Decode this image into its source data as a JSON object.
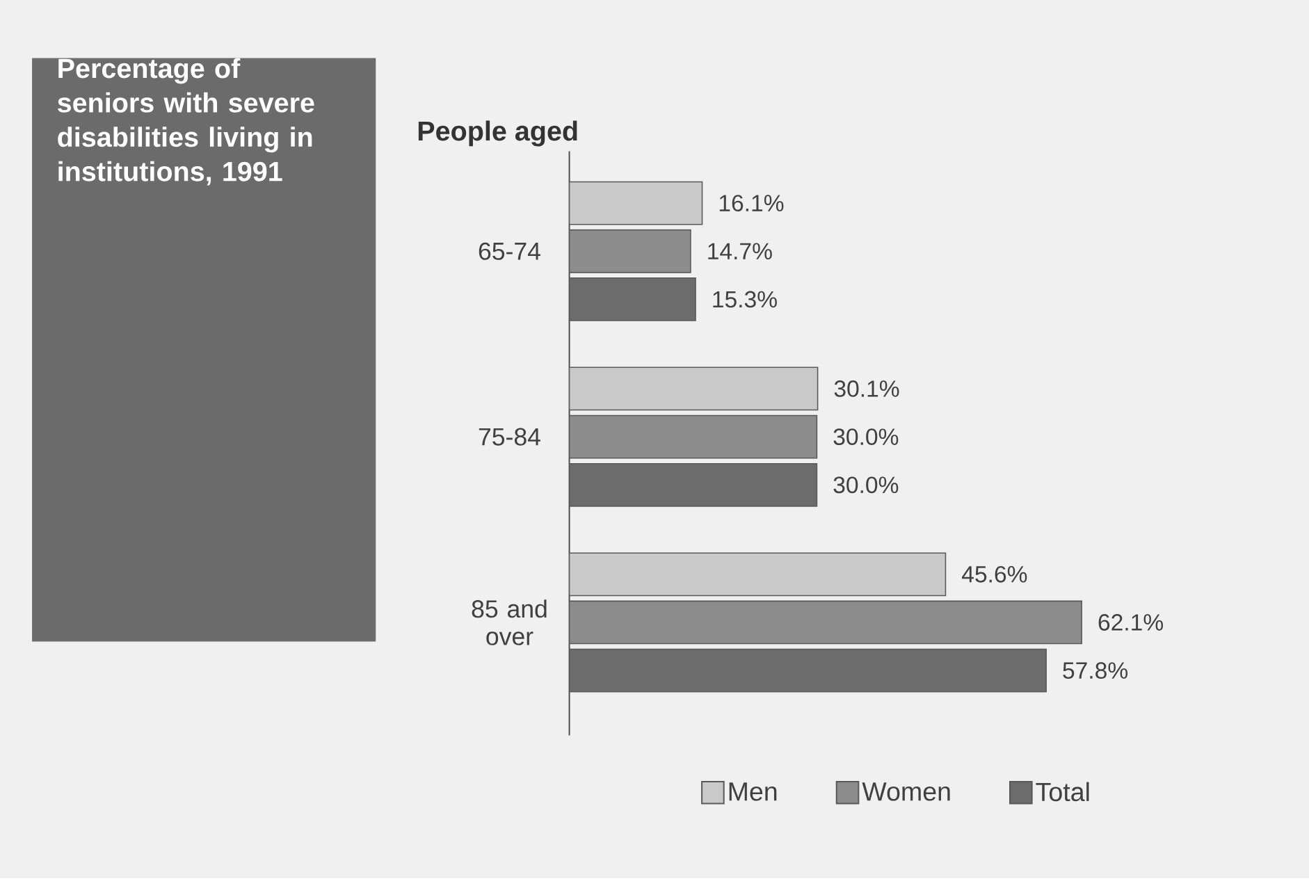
{
  "chart_data": {
    "type": "bar",
    "orientation": "horizontal",
    "title": "Percentage of seniors with severe disabilities living in institutions, 1991",
    "ylabel": "People aged",
    "categories": [
      "65-74",
      "75-84",
      "85 and over"
    ],
    "series": [
      {
        "name": "Men",
        "color": "#c9c9c9",
        "values": [
          16.1,
          30.1,
          45.6
        ],
        "value_labels": [
          "16.1%",
          "30.1%",
          "45.6%"
        ]
      },
      {
        "name": "Women",
        "color": "#8c8c8c",
        "values": [
          14.7,
          30.0,
          62.1
        ],
        "value_labels": [
          "14.7%",
          "30.0%",
          "62.1%"
        ]
      },
      {
        "name": "Total",
        "color": "#6c6c6c",
        "values": [
          15.3,
          30.0,
          57.8
        ],
        "value_labels": [
          "15.3%",
          "30.0%",
          "57.8%"
        ]
      }
    ],
    "tick_labels": "y",
    "legend": "bottom",
    "grid": false
  }
}
